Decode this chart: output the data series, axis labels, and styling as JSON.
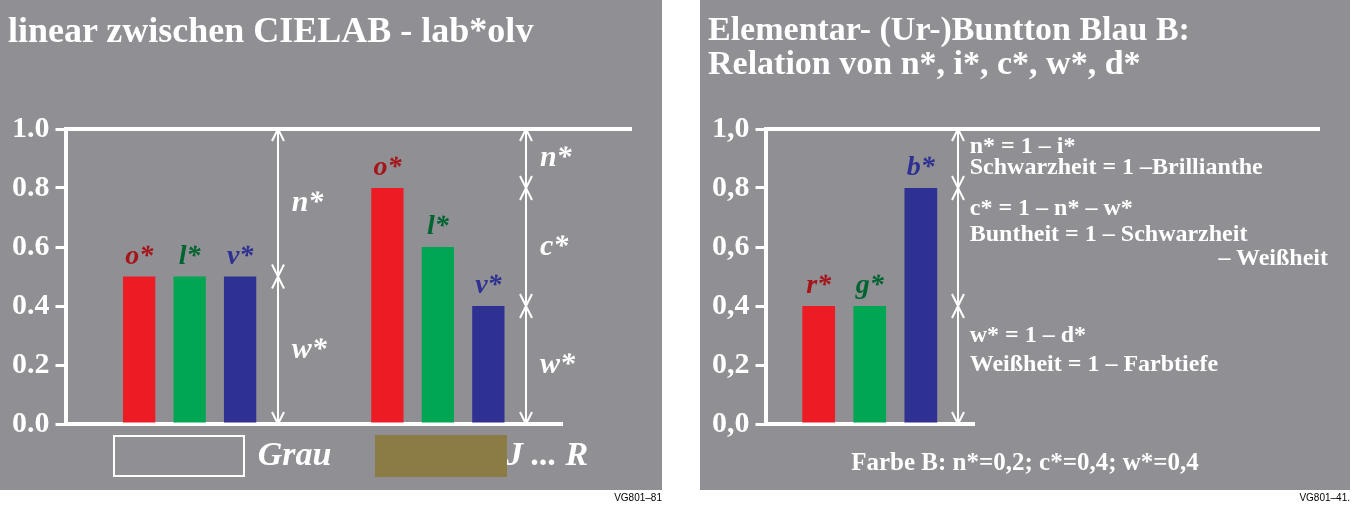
{
  "chart_data": [
    {
      "type": "bar",
      "title": "linear zwischen CIELAB - lab*olv",
      "categories": [
        null,
        null
      ],
      "series": [
        {
          "name": "o*",
          "color": "#ed1c24",
          "values": [
            0.5,
            0.8
          ]
        },
        {
          "name": "l*",
          "color": "#00a651",
          "values": [
            0.5,
            0.6
          ]
        },
        {
          "name": "v*",
          "color": "#2e3192",
          "values": [
            0.5,
            0.4
          ]
        }
      ],
      "ylim": [
        0,
        1
      ],
      "yticks": [
        {
          "value": 0,
          "label": "0.0"
        },
        0.2,
        0.4,
        0.6,
        0.8,
        {
          "value": 1,
          "label": "1.0"
        }
      ],
      "annotations": [
        "n*",
        "w*",
        "n*",
        "c*",
        "w*",
        "Grau",
        "J ... R",
        "VG801–81"
      ]
    },
    {
      "type": "bar",
      "title": "Elementar- (Ur-)Buntton Blau B:\nRelation von n*, i*, c*, w*, d*",
      "categories": [
        null
      ],
      "series": [
        {
          "name": "r*",
          "color": "#ed1c24",
          "values": [
            0.4
          ]
        },
        {
          "name": "g*",
          "color": "#00a651",
          "values": [
            0.4
          ]
        },
        {
          "name": "b*",
          "color": "#2e3192",
          "values": [
            0.8
          ]
        }
      ],
      "ylim": [
        0,
        1
      ],
      "yticks": [
        {
          "value": 0,
          "label": "0,0"
        },
        {
          "value": 0.2,
          "label": "0,2"
        },
        {
          "value": 0.4,
          "label": "0,4"
        },
        {
          "value": 0.6,
          "label": "0,6"
        },
        {
          "value": 0.8,
          "label": "0,8"
        },
        {
          "value": 1,
          "label": "1,0"
        }
      ],
      "annotations": [
        "n* = 1 – i*",
        "Schwarzheit = 1 –Brillianthe",
        "c* = 1 – n* – w*",
        "Buntheit = 1 – Schwarzheit",
        "– Weißheit",
        "w* = 1 – d*",
        "Weißheit = 1 – Farbtiefe",
        "Farbe B: n*=0,2; c*=0,4; w*=0,4",
        "VG801–41."
      ]
    }
  ]
}
